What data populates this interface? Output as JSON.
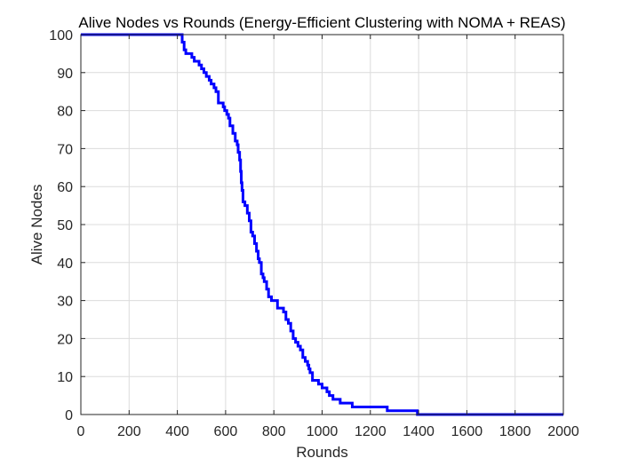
{
  "chart_data": {
    "type": "line",
    "title": "Alive Nodes vs Rounds (Energy-Efficient Clustering with NOMA + REAS)",
    "xlabel": "Rounds",
    "ylabel": "Alive Nodes",
    "xlim": [
      0,
      2000
    ],
    "ylim": [
      0,
      100
    ],
    "xticks": [
      0,
      200,
      400,
      600,
      800,
      1000,
      1200,
      1400,
      1600,
      1800,
      2000
    ],
    "yticks": [
      0,
      10,
      20,
      30,
      40,
      50,
      60,
      70,
      80,
      90,
      100
    ],
    "xtick_labels": [
      "0",
      "200",
      "400",
      "600",
      "800",
      "1000",
      "1200",
      "1400",
      "1600",
      "1800",
      "2000"
    ],
    "ytick_labels": [
      "0",
      "10",
      "20",
      "30",
      "40",
      "50",
      "60",
      "70",
      "80",
      "90",
      "100"
    ],
    "grid": true,
    "series": [
      {
        "color": "#0000ff",
        "line_style": "step",
        "x": [
          0,
          418,
          420,
          428,
          435,
          460,
          470,
          480,
          490,
          500,
          510,
          520,
          532,
          540,
          552,
          560,
          570,
          590,
          596,
          605,
          612,
          618,
          630,
          640,
          648,
          652,
          658,
          662,
          665,
          668,
          672,
          680,
          690,
          698,
          705,
          712,
          720,
          728,
          735,
          740,
          748,
          755,
          760,
          770,
          778,
          785,
          790,
          800,
          810,
          815,
          840,
          850,
          860,
          870,
          880,
          890,
          900,
          910,
          920,
          930,
          940,
          945,
          950,
          960,
          975,
          985,
          1000,
          1010,
          1020,
          1030,
          1045,
          1060,
          1075,
          1115,
          1125,
          1270,
          1395,
          2000
        ],
        "y": [
          100,
          100,
          98,
          96,
          95,
          94,
          93,
          93,
          92,
          91,
          90,
          89,
          88,
          87,
          86,
          85,
          82,
          81,
          80,
          79,
          78,
          76,
          74,
          72,
          71,
          69,
          67,
          64,
          61,
          59,
          56,
          55,
          53,
          51,
          48,
          47,
          45,
          43,
          41,
          40,
          37,
          36,
          35,
          33,
          31,
          31,
          30,
          30,
          30,
          28,
          27,
          25,
          24,
          22,
          20,
          19,
          18,
          17,
          15,
          14,
          13,
          12,
          11,
          9,
          9,
          8,
          7,
          7,
          6,
          5,
          4,
          4,
          3,
          3,
          2,
          1,
          0,
          0
        ]
      }
    ]
  }
}
